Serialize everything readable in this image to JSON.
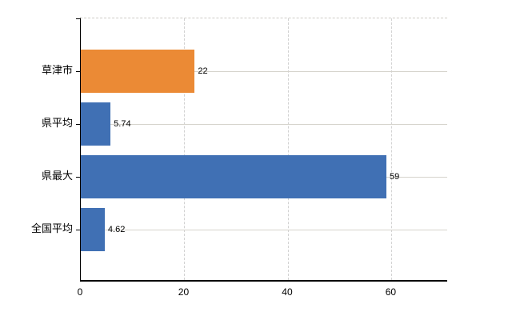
{
  "chart_data": {
    "type": "bar",
    "orientation": "horizontal",
    "title": "",
    "xlabel": "",
    "ylabel": "",
    "categories": [
      "草津市",
      "県平均",
      "県最大",
      "全国平均"
    ],
    "values": [
      22,
      5.74,
      59,
      4.62
    ],
    "value_labels": [
      "22",
      "5.74",
      "59",
      "4.62"
    ],
    "bar_colors": [
      "#EB8A35",
      "#4070B4",
      "#4070B4",
      "#4070B4"
    ],
    "xlim": [
      0,
      70.9
    ],
    "x_ticks": [
      0,
      20,
      40,
      60
    ],
    "x_tick_labels": [
      "0",
      "20",
      "40",
      "60"
    ],
    "grid": true,
    "legend": "none",
    "gridline_color": "#d6d3cc",
    "axis_color": "#000000",
    "background_color": "#ffffff"
  }
}
